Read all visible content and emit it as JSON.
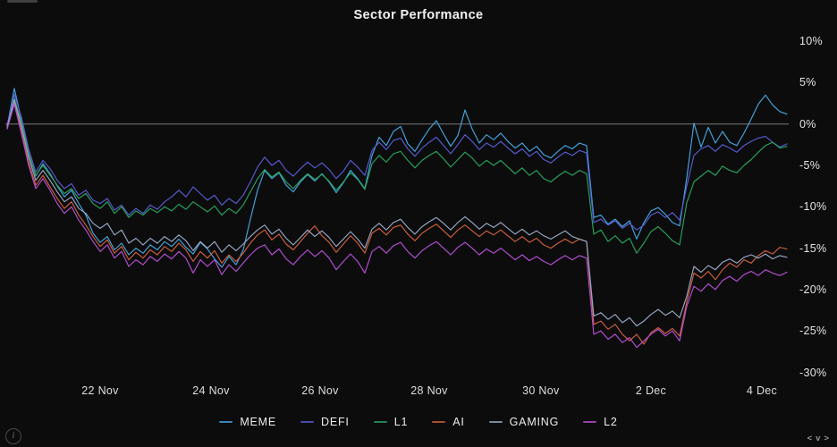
{
  "title": "Sector Performance",
  "info": {
    "label": "i"
  },
  "nav": {
    "left": "<",
    "down": "v",
    "right": ">"
  },
  "colors": {
    "background": "#0c0c0d",
    "zero_line": "#787878",
    "axis_text": "#e4e4e4",
    "title_text": "#f2f2f2"
  },
  "chart_data": {
    "type": "line",
    "title": "Sector Performance",
    "xlabel": "",
    "ylabel": "",
    "ylim": [
      -31.5,
      11.5
    ],
    "grid": "zero-baseline-only",
    "baseline_value": 0,
    "legend_position": "bottom",
    "y_ticks": [
      {
        "label": "10%",
        "value": 10
      },
      {
        "label": "5%",
        "value": 5
      },
      {
        "label": "0%",
        "value": 0
      },
      {
        "label": "-5%",
        "value": -5
      },
      {
        "label": "-10%",
        "value": -10
      },
      {
        "label": "-15%",
        "value": -15
      },
      {
        "label": "-20%",
        "value": -20
      },
      {
        "label": "-25%",
        "value": -25
      },
      {
        "label": "-30%",
        "value": -30
      }
    ],
    "x_ticks": [
      {
        "label": "22 Nov",
        "index": 13
      },
      {
        "label": "24 Nov",
        "index": 28.5
      },
      {
        "label": "26 Nov",
        "index": 43.75
      },
      {
        "label": "28 Nov",
        "index": 59
      },
      {
        "label": "30 Nov",
        "index": 74.6
      },
      {
        "label": "2 Dec",
        "index": 90
      },
      {
        "label": "4 Dec",
        "index": 105.5
      }
    ],
    "series": [
      {
        "name": "MEME",
        "color": "#45a5de",
        "values": [
          -0.3,
          4.3,
          0.5,
          -3.5,
          -6.3,
          -4.8,
          -6.0,
          -7.5,
          -8.8,
          -8.0,
          -9.6,
          -11.0,
          -13.2,
          -14.3,
          -13.6,
          -15.2,
          -14.4,
          -15.8,
          -15.0,
          -15.6,
          -14.6,
          -15.2,
          -14.2,
          -14.8,
          -13.9,
          -14.9,
          -15.7,
          -14.3,
          -15.1,
          -16.3,
          -17.3,
          -16.0,
          -17.0,
          -15.2,
          -11.5,
          -8.0,
          -5.6,
          -6.6,
          -5.9,
          -7.4,
          -8.2,
          -7.0,
          -6.1,
          -6.9,
          -6.0,
          -7.0,
          -8.3,
          -7.1,
          -5.6,
          -6.6,
          -7.8,
          -3.8,
          -1.6,
          -2.6,
          -0.9,
          -0.3,
          -2.4,
          -3.3,
          -1.9,
          -0.6,
          0.4,
          -1.2,
          -2.7,
          -1.4,
          1.7,
          -0.6,
          -2.3,
          -1.3,
          -1.9,
          -1.1,
          -2.1,
          -2.9,
          -2.3,
          -3.3,
          -2.7,
          -3.7,
          -4.1,
          -3.3,
          -2.6,
          -3.0,
          -2.3,
          -2.6,
          -11.3,
          -11.0,
          -12.1,
          -11.5,
          -12.4,
          -11.7,
          -13.9,
          -11.9,
          -10.5,
          -10.1,
          -10.9,
          -11.9,
          -12.3,
          -6.5,
          0.1,
          -2.8,
          -0.4,
          -2.3,
          -0.9,
          -2.2,
          -2.6,
          -1.1,
          0.6,
          2.4,
          3.5,
          2.3,
          1.5,
          1.2
        ]
      },
      {
        "name": "DEFI",
        "color": "#585cd2",
        "values": [
          -0.2,
          3.6,
          0.8,
          -3.0,
          -5.8,
          -4.4,
          -5.4,
          -6.8,
          -7.8,
          -7.2,
          -8.6,
          -8.0,
          -9.2,
          -9.6,
          -9.0,
          -10.4,
          -9.8,
          -11.0,
          -10.2,
          -10.8,
          -9.8,
          -10.3,
          -9.4,
          -8.8,
          -8.0,
          -8.8,
          -7.6,
          -8.4,
          -9.2,
          -8.6,
          -9.8,
          -9.0,
          -9.6,
          -8.6,
          -7.0,
          -5.2,
          -4.0,
          -5.0,
          -4.4,
          -5.6,
          -6.3,
          -5.4,
          -4.6,
          -5.3,
          -4.7,
          -5.5,
          -6.6,
          -5.7,
          -4.4,
          -5.2,
          -6.2,
          -3.2,
          -2.2,
          -3.1,
          -2.0,
          -1.7,
          -3.0,
          -3.9,
          -2.9,
          -2.2,
          -1.6,
          -2.6,
          -3.6,
          -2.5,
          -1.3,
          -2.1,
          -3.1,
          -2.3,
          -2.8,
          -2.1,
          -2.9,
          -3.6,
          -3.0,
          -3.9,
          -3.3,
          -4.3,
          -4.7,
          -4.0,
          -3.4,
          -3.8,
          -3.2,
          -3.5,
          -11.9,
          -11.5,
          -12.2,
          -11.7,
          -12.6,
          -12.0,
          -12.8,
          -12.2,
          -11.0,
          -10.6,
          -11.3,
          -10.7,
          -11.6,
          -7.5,
          -3.8,
          -3.0,
          -2.6,
          -3.3,
          -2.5,
          -2.9,
          -3.4,
          -2.6,
          -2.1,
          -1.7,
          -1.5,
          -2.2,
          -2.8,
          -2.4
        ]
      },
      {
        "name": "L1",
        "color": "#29a35b",
        "values": [
          -0.4,
          3.1,
          0.2,
          -3.6,
          -6.2,
          -5.0,
          -6.2,
          -7.4,
          -8.4,
          -7.8,
          -9.0,
          -8.4,
          -9.6,
          -10.2,
          -9.4,
          -10.8,
          -10.0,
          -11.3,
          -10.5,
          -11.0,
          -10.2,
          -10.7,
          -10.0,
          -10.5,
          -9.7,
          -10.3,
          -9.4,
          -10.0,
          -10.6,
          -9.9,
          -11.0,
          -10.2,
          -10.8,
          -9.8,
          -8.2,
          -6.6,
          -5.5,
          -6.4,
          -5.8,
          -7.0,
          -7.8,
          -6.8,
          -6.0,
          -6.7,
          -6.1,
          -6.9,
          -8.0,
          -7.0,
          -5.9,
          -6.7,
          -7.9,
          -4.8,
          -3.8,
          -4.6,
          -3.6,
          -3.3,
          -4.4,
          -5.3,
          -4.4,
          -3.8,
          -3.3,
          -4.2,
          -5.2,
          -4.3,
          -3.4,
          -4.1,
          -5.1,
          -4.4,
          -5.0,
          -4.4,
          -5.2,
          -6.0,
          -5.3,
          -6.2,
          -5.6,
          -6.6,
          -7.0,
          -6.3,
          -5.7,
          -6.2,
          -5.6,
          -6.0,
          -13.3,
          -12.8,
          -14.2,
          -13.5,
          -14.4,
          -13.8,
          -15.6,
          -14.4,
          -13.0,
          -12.4,
          -13.2,
          -14.1,
          -14.6,
          -9.5,
          -7.0,
          -6.3,
          -5.6,
          -6.2,
          -5.1,
          -5.6,
          -5.9,
          -5.0,
          -4.3,
          -3.4,
          -2.6,
          -2.2,
          -2.9,
          -2.7
        ]
      },
      {
        "name": "AI",
        "color": "#cf5f3c",
        "values": [
          -0.5,
          2.6,
          -0.8,
          -4.6,
          -7.4,
          -6.2,
          -7.6,
          -9.0,
          -10.2,
          -9.4,
          -11.0,
          -12.2,
          -13.6,
          -14.8,
          -14.0,
          -15.6,
          -14.8,
          -16.4,
          -15.5,
          -16.2,
          -15.2,
          -15.8,
          -14.8,
          -15.4,
          -14.4,
          -15.2,
          -16.6,
          -15.4,
          -16.2,
          -15.3,
          -16.8,
          -15.8,
          -16.6,
          -15.6,
          -14.4,
          -13.4,
          -12.8,
          -14.0,
          -13.3,
          -14.5,
          -15.2,
          -14.2,
          -13.2,
          -12.3,
          -13.5,
          -14.3,
          -15.5,
          -14.5,
          -13.5,
          -14.4,
          -15.6,
          -13.2,
          -12.6,
          -13.4,
          -12.5,
          -12.2,
          -13.3,
          -14.1,
          -13.2,
          -12.6,
          -12.1,
          -12.9,
          -13.7,
          -12.8,
          -12.2,
          -12.9,
          -13.6,
          -12.9,
          -13.4,
          -12.8,
          -13.5,
          -14.2,
          -13.6,
          -14.3,
          -13.8,
          -14.6,
          -15.0,
          -14.4,
          -13.9,
          -14.4,
          -13.9,
          -14.2,
          -24.2,
          -23.8,
          -24.8,
          -24.2,
          -25.4,
          -26.2,
          -25.4,
          -26.6,
          -25.2,
          -24.6,
          -25.3,
          -24.7,
          -25.6,
          -21.5,
          -18.0,
          -18.6,
          -17.8,
          -18.8,
          -17.6,
          -16.8,
          -17.3,
          -16.4,
          -16.8,
          -15.9,
          -15.3,
          -15.7,
          -14.9,
          -15.1
        ]
      },
      {
        "name": "GAMING",
        "color": "#97a8c4",
        "values": [
          -0.3,
          2.9,
          -0.3,
          -4.0,
          -6.8,
          -5.6,
          -6.8,
          -8.2,
          -9.4,
          -8.8,
          -10.2,
          -10.8,
          -12.0,
          -12.6,
          -12.0,
          -13.4,
          -12.8,
          -14.4,
          -13.8,
          -14.6,
          -13.8,
          -14.4,
          -13.6,
          -14.2,
          -13.4,
          -14.1,
          -15.3,
          -14.2,
          -15.0,
          -14.2,
          -15.5,
          -14.6,
          -15.3,
          -14.5,
          -13.6,
          -12.8,
          -12.2,
          -13.3,
          -12.7,
          -13.8,
          -14.6,
          -13.7,
          -12.8,
          -13.6,
          -12.9,
          -13.7,
          -14.8,
          -13.9,
          -13.0,
          -13.9,
          -15.0,
          -12.7,
          -12.0,
          -12.8,
          -11.9,
          -11.5,
          -12.5,
          -13.3,
          -12.4,
          -11.8,
          -11.3,
          -12.0,
          -12.8,
          -11.9,
          -11.2,
          -11.9,
          -12.7,
          -12.0,
          -12.5,
          -11.9,
          -12.6,
          -13.3,
          -12.7,
          -13.4,
          -12.9,
          -13.5,
          -13.9,
          -13.4,
          -12.9,
          -13.6,
          -13.9,
          -14.2,
          -23.2,
          -22.8,
          -23.6,
          -23.0,
          -24.0,
          -23.4,
          -24.4,
          -23.8,
          -23.0,
          -22.4,
          -23.1,
          -22.6,
          -23.4,
          -20.8,
          -17.2,
          -17.9,
          -17.1,
          -17.6,
          -16.7,
          -16.3,
          -16.8,
          -16.1,
          -15.8,
          -16.2,
          -15.7,
          -16.3,
          -15.9,
          -16.1
        ]
      },
      {
        "name": "L2",
        "color": "#b64fd4",
        "values": [
          -0.6,
          2.4,
          -1.2,
          -5.0,
          -7.8,
          -6.6,
          -8.0,
          -9.6,
          -10.8,
          -10.0,
          -11.6,
          -12.8,
          -14.2,
          -15.4,
          -14.6,
          -16.2,
          -15.4,
          -17.2,
          -16.4,
          -17.0,
          -16.0,
          -16.6,
          -15.7,
          -16.3,
          -15.4,
          -16.2,
          -18.0,
          -16.4,
          -17.2,
          -16.4,
          -18.2,
          -17.0,
          -17.8,
          -16.8,
          -15.8,
          -15.0,
          -14.6,
          -15.8,
          -15.1,
          -16.3,
          -17.0,
          -16.0,
          -15.2,
          -16.0,
          -15.3,
          -16.2,
          -17.6,
          -16.6,
          -15.7,
          -16.6,
          -18.0,
          -15.4,
          -14.8,
          -15.6,
          -14.7,
          -14.3,
          -15.4,
          -16.2,
          -15.3,
          -14.7,
          -14.2,
          -15.0,
          -15.8,
          -14.9,
          -14.3,
          -15.0,
          -15.8,
          -15.1,
          -15.6,
          -15.0,
          -15.7,
          -16.4,
          -15.8,
          -16.5,
          -16.0,
          -16.6,
          -17.0,
          -16.4,
          -15.9,
          -16.4,
          -15.9,
          -16.2,
          -25.4,
          -25.0,
          -26.0,
          -25.4,
          -26.4,
          -25.8,
          -27.0,
          -26.2,
          -25.4,
          -24.8,
          -25.6,
          -25.0,
          -26.2,
          -22.0,
          -19.6,
          -20.2,
          -19.3,
          -20.0,
          -18.9,
          -18.4,
          -19.0,
          -18.2,
          -17.8,
          -18.3,
          -17.6,
          -18.0,
          -18.3,
          -17.9
        ]
      }
    ]
  }
}
